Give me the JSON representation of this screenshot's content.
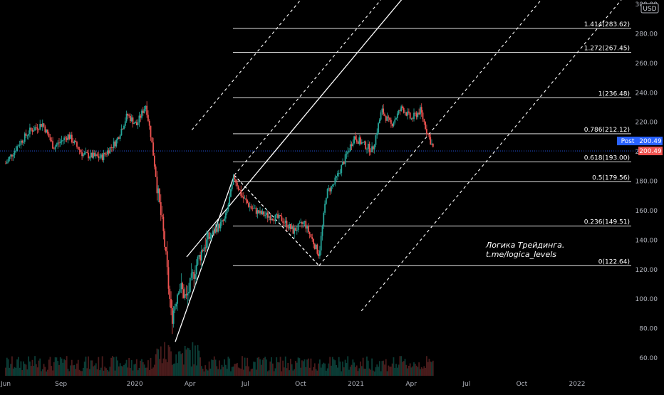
{
  "chart_data": {
    "type": "candlestick",
    "currency": "USD",
    "y_axis": {
      "min": 50,
      "max": 300,
      "ticks": [
        60,
        80,
        100,
        120,
        140,
        160,
        180,
        200,
        220,
        240,
        260,
        280,
        300
      ],
      "tick_labels": [
        "60.00",
        "80.00",
        "100.00",
        "120.00",
        "140.00",
        "160.00",
        "180.00",
        "200.00",
        "220.00",
        "240.00",
        "260.00",
        "280.00",
        "300.00"
      ]
    },
    "x_axis": {
      "ticks": [
        {
          "label": "Jun",
          "t": 0
        },
        {
          "label": "Sep",
          "t": 3
        },
        {
          "label": "2020",
          "t": 7
        },
        {
          "label": "Apr",
          "t": 10
        },
        {
          "label": "Jul",
          "t": 13
        },
        {
          "label": "Oct",
          "t": 16
        },
        {
          "label": "2021",
          "t": 19
        },
        {
          "label": "Apr",
          "t": 22
        },
        {
          "label": "Jul",
          "t": 25
        },
        {
          "label": "Oct",
          "t": 28
        },
        {
          "label": "2022",
          "t": 31
        }
      ]
    },
    "last_price": {
      "value": 200.49,
      "label": "200.49"
    },
    "post_price": {
      "label": "Post",
      "value": 200.49,
      "value_label": "200.49"
    },
    "fib_levels": [
      {
        "ratio_label": "1.414(283.62)",
        "price": 283.62
      },
      {
        "ratio_label": "1.272(267.45)",
        "price": 267.45
      },
      {
        "ratio_label": "1(236.48)",
        "price": 236.48
      },
      {
        "ratio_label": "0.786(212.12)",
        "price": 212.12
      },
      {
        "ratio_label": "0.618(193.00)",
        "price": 193.0
      },
      {
        "ratio_label": "0.5(179.56)",
        "price": 179.56
      },
      {
        "ratio_label": "0.236(149.51)",
        "price": 149.51
      },
      {
        "ratio_label": "0(122.64)",
        "price": 122.64
      }
    ],
    "price_path": [
      [
        0,
        192
      ],
      [
        0.7,
        205
      ],
      [
        1.3,
        214
      ],
      [
        2.0,
        219
      ],
      [
        2.6,
        203
      ],
      [
        3.4,
        211
      ],
      [
        4.2,
        198
      ],
      [
        5.2,
        196
      ],
      [
        6.0,
        207
      ],
      [
        6.6,
        225
      ],
      [
        7.1,
        218
      ],
      [
        7.6,
        232
      ],
      [
        7.9,
        209
      ],
      [
        8.3,
        168
      ],
      [
        8.6,
        140
      ],
      [
        9.0,
        86
      ],
      [
        9.4,
        110
      ],
      [
        9.8,
        100
      ],
      [
        10.3,
        122
      ],
      [
        10.7,
        135
      ],
      [
        11.3,
        146
      ],
      [
        11.9,
        154
      ],
      [
        12.4,
        183
      ],
      [
        12.8,
        170
      ],
      [
        13.3,
        162
      ],
      [
        13.8,
        158
      ],
      [
        14.4,
        156
      ],
      [
        15.0,
        154
      ],
      [
        15.6,
        146
      ],
      [
        16.2,
        152
      ],
      [
        16.6,
        141
      ],
      [
        17.0,
        130
      ],
      [
        17.4,
        172
      ],
      [
        17.8,
        178
      ],
      [
        18.3,
        192
      ],
      [
        18.9,
        210
      ],
      [
        19.4,
        205
      ],
      [
        19.9,
        201
      ],
      [
        20.4,
        228
      ],
      [
        20.9,
        218
      ],
      [
        21.5,
        230
      ],
      [
        22.0,
        222
      ],
      [
        22.5,
        228
      ],
      [
        22.9,
        212
      ],
      [
        23.2,
        202
      ]
    ],
    "pitchfork": {
      "pivot_a": {
        "t": 9.2,
        "p": 71
      },
      "pivot_b": {
        "t": 12.4,
        "p": 184
      },
      "pivot_c": {
        "t": 17.0,
        "p": 122.64
      }
    },
    "annotation": {
      "lines": [
        "Логика Трейдинга.",
        "t.me/logica_levels"
      ]
    }
  }
}
